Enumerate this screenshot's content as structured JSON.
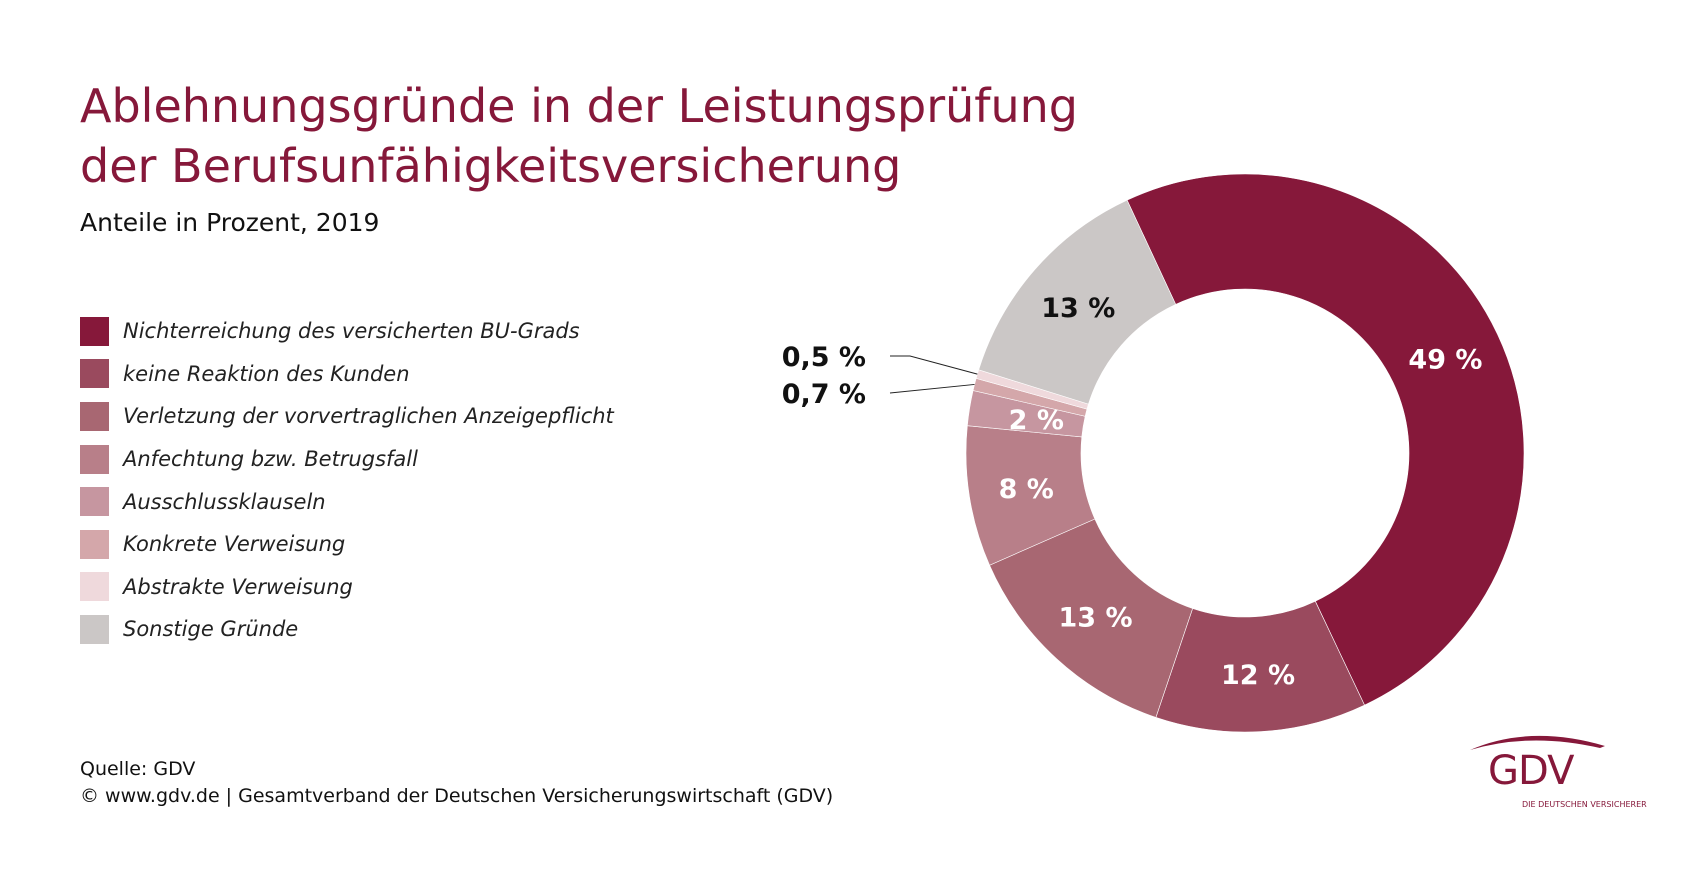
{
  "title_lines": [
    "Ablehnungsgründe in der Leistungsprüfung",
    "der Berufsunfähigkeitsversicherung"
  ],
  "subtitle": "Anteile in Prozent, 2019",
  "footer": {
    "source": "Quelle: GDV",
    "copyright": "© www.gdv.de | Gesamtverband der Deutschen Versicherungswirtschaft (GDV)"
  },
  "logo": {
    "text": "GDV",
    "tagline": "DIE DEUTSCHEN VERSICHERER"
  },
  "chart_data": {
    "type": "pie",
    "variant": "donut",
    "title": "Ablehnungsgründe in der Leistungsprüfung der Berufsunfähigkeitsversicherung",
    "subtitle": "Anteile in Prozent, 2019",
    "legend_position": "left",
    "slices": [
      {
        "name": "Nichterreichung des versicherten BU-Grads",
        "value": 49,
        "label": "49 %",
        "color": "#86183a"
      },
      {
        "name": "keine Reaktion des Kunden",
        "value": 12,
        "label": "12 %",
        "color": "#9a4a5e"
      },
      {
        "name": "Verletzung der vorvertraglichen Anzeigepflicht",
        "value": 13,
        "label": "13 %",
        "color": "#a86772"
      },
      {
        "name": "Anfechtung bzw. Betrugsfall",
        "value": 8,
        "label": "8 %",
        "color": "#b87f89"
      },
      {
        "name": "Ausschlussklauseln",
        "value": 2,
        "label": "2 %",
        "color": "#c696a0"
      },
      {
        "name": "Konkrete Verweisung",
        "value": 0.7,
        "label": "0,7 %",
        "color": "#d4a7aa"
      },
      {
        "name": "Abstrakte Verweisung",
        "value": 0.5,
        "label": "0,5 %",
        "color": "#efd9dc"
      },
      {
        "name": "Sonstige Gründe",
        "value": 13,
        "label": "13 %",
        "color": "#cbc7c6"
      }
    ]
  }
}
